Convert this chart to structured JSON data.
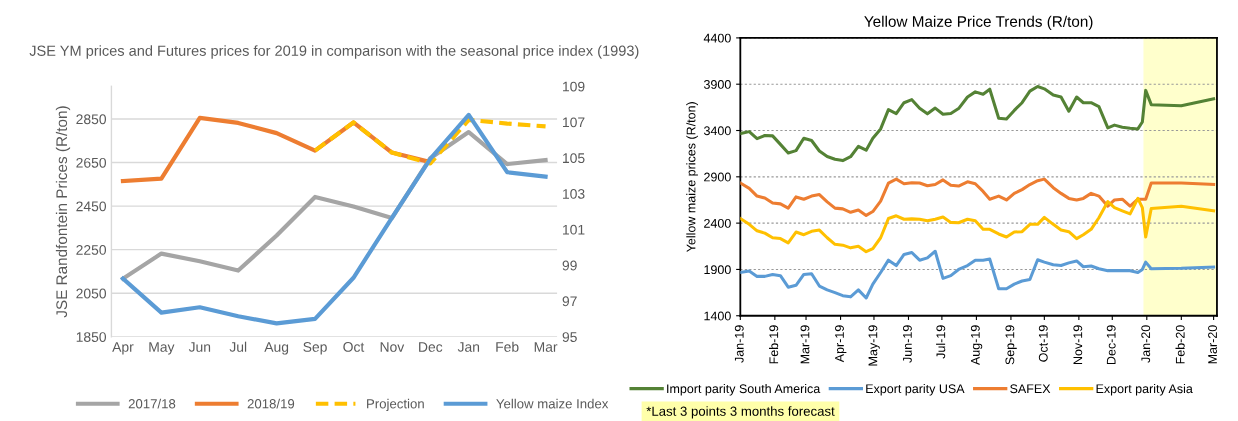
{
  "chart_data": [
    {
      "type": "line",
      "title": "JSE YM prices and Futures prices for 2019 in comparison with the seasonal price index (1993)",
      "ylabel": "JSE Randfontein Prices (R/ton)",
      "categories": [
        "Apr",
        "May",
        "Jun",
        "Jul",
        "Aug",
        "Sep",
        "Oct",
        "Nov",
        "Dec",
        "Jan",
        "Feb",
        "Mar"
      ],
      "ylim": [
        1850,
        3000
      ],
      "yticks": [
        1850,
        2050,
        2250,
        2450,
        2650,
        2850
      ],
      "y2lim": [
        95,
        109
      ],
      "y2ticks": [
        95,
        97,
        99,
        101,
        103,
        105,
        107,
        109
      ],
      "grid": "y",
      "legend": "bottom",
      "series": [
        {
          "name": "2017/18",
          "color": "#a5a5a5",
          "values": [
            2117,
            2232,
            2197,
            2154,
            2315,
            2492,
            2448,
            2395,
            2670,
            2790,
            2643,
            2661
          ]
        },
        {
          "name": "2018/19",
          "color": "#ed7d31",
          "values": [
            2565,
            2576,
            2855,
            2832,
            2785,
            2705,
            2834,
            2696,
            2652,
            null,
            null,
            null
          ]
        },
        {
          "name": "Projection",
          "color": "#ffc000",
          "line_style": "dashed",
          "values": [
            null,
            null,
            null,
            null,
            null,
            2705,
            2834,
            2696,
            2646,
            2846,
            2829,
            2816
          ]
        },
        {
          "name": "Yellow maize Index",
          "color": "#5b9bd5",
          "axis": "y2",
          "values": [
            98.25,
            96.35,
            96.65,
            96.15,
            95.75,
            96.0,
            98.3,
            101.65,
            104.95,
            107.4,
            104.2,
            103.95
          ]
        }
      ]
    },
    {
      "type": "line",
      "title": "Yellow Maize Price Trends (R/ton)",
      "ylabel": "Yellow maize prices (R/ton)",
      "x": [
        "2019-01-01",
        "2019-01-09",
        "2019-01-16",
        "2019-01-23",
        "2019-01-30",
        "2019-02-06",
        "2019-02-13",
        "2019-02-20",
        "2019-02-27",
        "2019-03-06",
        "2019-03-13",
        "2019-03-20",
        "2019-03-27",
        "2019-04-03",
        "2019-04-10",
        "2019-04-17",
        "2019-04-24",
        "2019-04-30",
        "2019-05-07",
        "2019-05-14",
        "2019-05-21",
        "2019-05-28",
        "2019-06-04",
        "2019-06-11",
        "2019-06-18",
        "2019-06-25",
        "2019-07-02",
        "2019-07-09",
        "2019-07-16",
        "2019-07-24",
        "2019-07-31",
        "2019-08-07",
        "2019-08-13",
        "2019-08-21",
        "2019-08-28",
        "2019-09-04",
        "2019-09-11",
        "2019-09-18",
        "2019-09-25",
        "2019-10-01",
        "2019-10-09",
        "2019-10-16",
        "2019-10-23",
        "2019-10-30",
        "2019-11-05",
        "2019-11-12",
        "2019-11-19",
        "2019-11-27",
        "2019-12-03",
        "2019-12-10",
        "2019-12-17",
        "2019-12-24",
        "2019-12-28",
        "2019-12-31",
        "2020-01-05",
        "2020-02-01",
        "2020-03-01"
      ],
      "xlim": [
        "2019-01-01",
        "2020-03-04"
      ],
      "xticks": [
        {
          "value": "2019-01-01",
          "label": "Jan-19"
        },
        {
          "value": "2019-02-01",
          "label": "Feb-19"
        },
        {
          "value": "2019-03-01",
          "label": "Mar-19"
        },
        {
          "value": "2019-04-01",
          "label": "Apr-19"
        },
        {
          "value": "2019-05-01",
          "label": "May-19"
        },
        {
          "value": "2019-06-01",
          "label": "Jun-19"
        },
        {
          "value": "2019-07-01",
          "label": "Jul-19"
        },
        {
          "value": "2019-08-01",
          "label": "Aug-19"
        },
        {
          "value": "2019-09-01",
          "label": "Sep-19"
        },
        {
          "value": "2019-10-01",
          "label": "Oct-19"
        },
        {
          "value": "2019-11-01",
          "label": "Nov-19"
        },
        {
          "value": "2019-12-01",
          "label": "Dec-19"
        },
        {
          "value": "2020-01-01",
          "label": "Jan-20"
        },
        {
          "value": "2020-02-01",
          "label": "Feb-20"
        },
        {
          "value": "2020-03-01",
          "label": "Mar-20"
        }
      ],
      "ylim": [
        1400,
        4400
      ],
      "yticks": [
        1400,
        1900,
        2400,
        2900,
        3400,
        3900,
        4400
      ],
      "grid": "y",
      "legend": "bottom",
      "bands": [
        {
          "axis": "x",
          "from": "2019-12-29",
          "to": "2020-03-04",
          "color": "#ffffcc"
        }
      ],
      "annotations": [
        "*Last 3 points 3 months forecast"
      ],
      "series": [
        {
          "name": "Import parity South America",
          "color": "#548235",
          "values": [
            3367,
            3388,
            3312,
            3346,
            3342,
            3250,
            3158,
            3183,
            3317,
            3292,
            3179,
            3120,
            3090,
            3075,
            3117,
            3229,
            3187,
            3317,
            3417,
            3625,
            3583,
            3700,
            3733,
            3640,
            3580,
            3642,
            3575,
            3583,
            3637,
            3762,
            3817,
            3792,
            3846,
            3533,
            3525,
            3617,
            3700,
            3825,
            3875,
            3850,
            3783,
            3762,
            3608,
            3762,
            3700,
            3700,
            3658,
            3429,
            3458,
            3435,
            3425,
            3417,
            3492,
            3833,
            3679,
            3667,
            3742
          ]
        },
        {
          "name": "Export parity USA",
          "color": "#5b9bd5",
          "values": [
            1867,
            1883,
            1825,
            1825,
            1846,
            1833,
            1708,
            1729,
            1846,
            1854,
            1721,
            1680,
            1650,
            1617,
            1604,
            1679,
            1592,
            1742,
            1867,
            2000,
            1942,
            2062,
            2083,
            2000,
            2025,
            2096,
            1804,
            1833,
            1900,
            1942,
            2000,
            2000,
            2012,
            1692,
            1692,
            1742,
            1775,
            1792,
            2004,
            1979,
            1950,
            1942,
            1971,
            1992,
            1929,
            1937,
            1908,
            1887,
            1887,
            1887,
            1887,
            1867,
            1900,
            1979,
            1908,
            1912,
            1925
          ]
        },
        {
          "name": "SAFEX",
          "color": "#ed7d31",
          "values": [
            2833,
            2775,
            2692,
            2671,
            2617,
            2608,
            2562,
            2683,
            2658,
            2692,
            2708,
            2629,
            2562,
            2554,
            2517,
            2542,
            2483,
            2525,
            2637,
            2833,
            2875,
            2825,
            2837,
            2833,
            2804,
            2817,
            2867,
            2808,
            2800,
            2846,
            2825,
            2742,
            2658,
            2692,
            2650,
            2721,
            2762,
            2817,
            2858,
            2875,
            2783,
            2721,
            2667,
            2650,
            2667,
            2721,
            2692,
            2583,
            2650,
            2658,
            2583,
            2658,
            2658,
            2658,
            2833,
            2833,
            2817
          ]
        },
        {
          "name": "Export parity Asia",
          "color": "#ffc000",
          "values": [
            2450,
            2387,
            2317,
            2292,
            2242,
            2233,
            2187,
            2304,
            2275,
            2312,
            2325,
            2242,
            2171,
            2162,
            2133,
            2150,
            2092,
            2125,
            2242,
            2450,
            2479,
            2442,
            2446,
            2442,
            2425,
            2442,
            2467,
            2408,
            2404,
            2442,
            2425,
            2333,
            2333,
            2283,
            2250,
            2304,
            2308,
            2387,
            2387,
            2462,
            2387,
            2325,
            2308,
            2233,
            2275,
            2333,
            2458,
            2633,
            2567,
            2533,
            2500,
            2667,
            2567,
            2250,
            2558,
            2583,
            2533
          ]
        }
      ]
    }
  ]
}
